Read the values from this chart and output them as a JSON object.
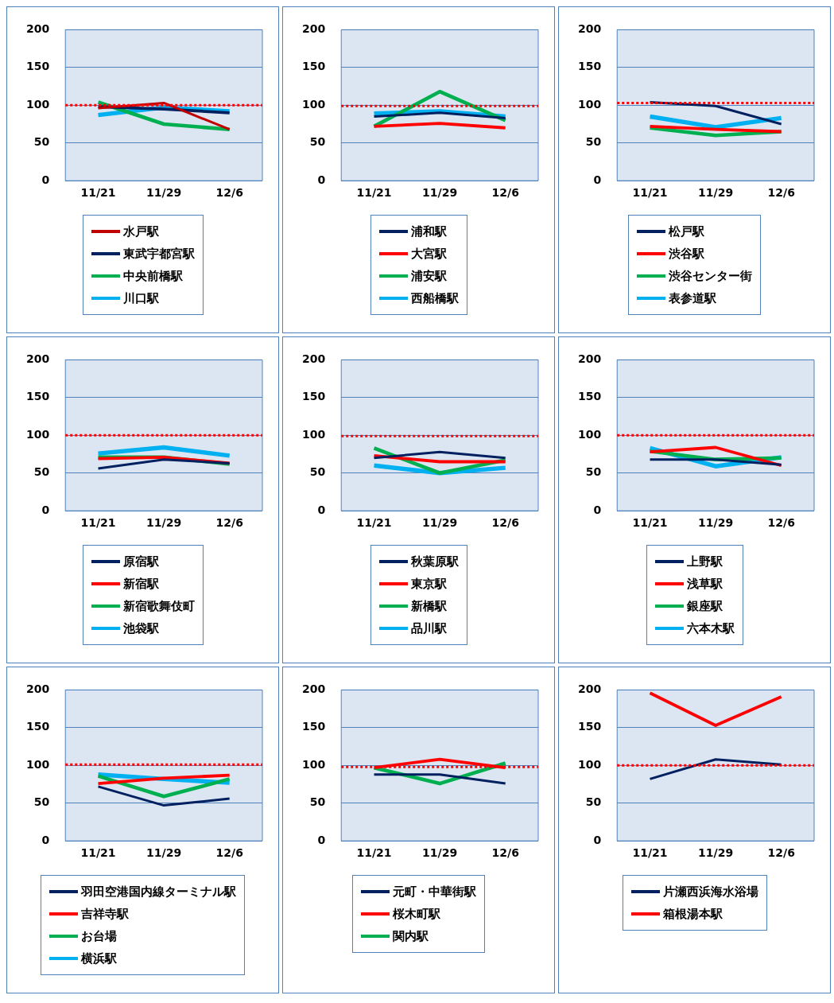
{
  "chart_data": [
    {
      "type": "line",
      "categories": [
        "11/21",
        "11/29",
        "12/6"
      ],
      "ylim": [
        0,
        200
      ],
      "yticks": [
        0,
        50,
        100,
        150,
        200
      ],
      "grid": "y",
      "legend": "bottom",
      "marker": "none",
      "line_style": "solid",
      "ref_lines": [
        {
          "axis": "y",
          "value": 100,
          "color": "#ff0000",
          "line_style": "dotted"
        }
      ],
      "series": [
        {
          "name": "水戸駅",
          "color": "#c00000",
          "values": [
            96,
            103,
            68
          ]
        },
        {
          "name": "東武宇都宮駅",
          "color": "#002060",
          "values": [
            98,
            95,
            90
          ]
        },
        {
          "name": "中央前橋駅",
          "color": "#00b050",
          "values": [
            104,
            75,
            68
          ]
        },
        {
          "name": "川口駅",
          "color": "#00b0f0",
          "values": [
            87,
            97,
            92
          ]
        }
      ]
    },
    {
      "type": "line",
      "categories": [
        "11/21",
        "11/29",
        "12/6"
      ],
      "ylim": [
        0,
        200
      ],
      "yticks": [
        0,
        50,
        100,
        150,
        200
      ],
      "grid": "y",
      "legend": "bottom",
      "marker": "none",
      "line_style": "solid",
      "ref_lines": [
        {
          "axis": "y",
          "value": 99,
          "color": "#ff0000",
          "line_style": "dotted"
        }
      ],
      "series": [
        {
          "name": "浦和駅",
          "color": "#002060",
          "values": [
            85,
            90,
            83
          ]
        },
        {
          "name": "大宮駅",
          "color": "#ff0000",
          "values": [
            72,
            76,
            70
          ]
        },
        {
          "name": "浦安駅",
          "color": "#00b050",
          "values": [
            72,
            118,
            80
          ]
        },
        {
          "name": "西船橋駅",
          "color": "#00b0f0",
          "values": [
            89,
            92,
            85
          ]
        }
      ]
    },
    {
      "type": "line",
      "categories": [
        "11/21",
        "11/29",
        "12/6"
      ],
      "ylim": [
        0,
        200
      ],
      "yticks": [
        0,
        50,
        100,
        150,
        200
      ],
      "grid": "y",
      "legend": "bottom",
      "marker": "none",
      "line_style": "solid",
      "ref_lines": [
        {
          "axis": "y",
          "value": 103,
          "color": "#ff0000",
          "line_style": "dotted"
        }
      ],
      "series": [
        {
          "name": "松戸駅",
          "color": "#002060",
          "values": [
            104,
            99,
            75
          ]
        },
        {
          "name": "渋谷駅",
          "color": "#ff0000",
          "values": [
            72,
            68,
            65
          ]
        },
        {
          "name": "渋谷センター街",
          "color": "#00b050",
          "values": [
            70,
            60,
            65
          ]
        },
        {
          "name": "表参道駅",
          "color": "#00b0f0",
          "values": [
            85,
            71,
            83
          ]
        }
      ]
    },
    {
      "type": "line",
      "categories": [
        "11/21",
        "11/29",
        "12/6"
      ],
      "ylim": [
        0,
        200
      ],
      "yticks": [
        0,
        50,
        100,
        150,
        200
      ],
      "grid": "y",
      "legend": "bottom",
      "marker": "none",
      "line_style": "solid",
      "ref_lines": [
        {
          "axis": "y",
          "value": 100,
          "color": "#ff0000",
          "line_style": "dotted"
        }
      ],
      "series": [
        {
          "name": "原宿駅",
          "color": "#002060",
          "values": [
            56,
            68,
            63
          ]
        },
        {
          "name": "新宿駅",
          "color": "#ff0000",
          "values": [
            69,
            71,
            63
          ]
        },
        {
          "name": "新宿歌舞伎町",
          "color": "#00b050",
          "values": [
            71,
            71,
            62
          ]
        },
        {
          "name": "池袋駅",
          "color": "#00b0f0",
          "values": [
            76,
            84,
            73
          ]
        }
      ]
    },
    {
      "type": "line",
      "categories": [
        "11/21",
        "11/29",
        "12/6"
      ],
      "ylim": [
        0,
        200
      ],
      "yticks": [
        0,
        50,
        100,
        150,
        200
      ],
      "grid": "y",
      "legend": "bottom",
      "marker": "none",
      "line_style": "solid",
      "ref_lines": [
        {
          "axis": "y",
          "value": 99,
          "color": "#ff0000",
          "line_style": "dotted"
        }
      ],
      "series": [
        {
          "name": "秋葉原駅",
          "color": "#002060",
          "values": [
            70,
            78,
            70
          ]
        },
        {
          "name": "東京駅",
          "color": "#ff0000",
          "values": [
            73,
            65,
            65
          ]
        },
        {
          "name": "新橋駅",
          "color": "#00b050",
          "values": [
            83,
            50,
            67
          ]
        },
        {
          "name": "品川駅",
          "color": "#00b0f0",
          "values": [
            60,
            50,
            57
          ]
        }
      ]
    },
    {
      "type": "line",
      "categories": [
        "11/21",
        "11/29",
        "12/6"
      ],
      "ylim": [
        0,
        200
      ],
      "yticks": [
        0,
        50,
        100,
        150,
        200
      ],
      "grid": "y",
      "legend": "bottom",
      "marker": "none",
      "line_style": "solid",
      "ref_lines": [
        {
          "axis": "y",
          "value": 100,
          "color": "#ff0000",
          "line_style": "dotted"
        }
      ],
      "series": [
        {
          "name": "上野駅",
          "color": "#002060",
          "values": [
            68,
            68,
            61
          ]
        },
        {
          "name": "浅草駅",
          "color": "#ff0000",
          "values": [
            78,
            84,
            60
          ]
        },
        {
          "name": "銀座駅",
          "color": "#00b050",
          "values": [
            79,
            68,
            70
          ]
        },
        {
          "name": "六本木駅",
          "color": "#00b0f0",
          "values": [
            83,
            59,
            71
          ]
        }
      ]
    },
    {
      "type": "line",
      "categories": [
        "11/21",
        "11/29",
        "12/6"
      ],
      "ylim": [
        0,
        200
      ],
      "yticks": [
        0,
        50,
        100,
        150,
        200
      ],
      "grid": "y",
      "legend": "bottom",
      "marker": "none",
      "line_style": "solid",
      "ref_lines": [
        {
          "axis": "y",
          "value": 101,
          "color": "#ff0000",
          "line_style": "dotted"
        }
      ],
      "series": [
        {
          "name": "羽田空港国内線ターミナル駅",
          "color": "#002060",
          "values": [
            72,
            47,
            56
          ]
        },
        {
          "name": "吉祥寺駅",
          "color": "#ff0000",
          "values": [
            76,
            83,
            87
          ]
        },
        {
          "name": "お台場",
          "color": "#00b050",
          "values": [
            86,
            59,
            82
          ]
        },
        {
          "name": "横浜駅",
          "color": "#00b0f0",
          "values": [
            88,
            82,
            77
          ]
        }
      ]
    },
    {
      "type": "line",
      "categories": [
        "11/21",
        "11/29",
        "12/6"
      ],
      "ylim": [
        0,
        200
      ],
      "yticks": [
        0,
        50,
        100,
        150,
        200
      ],
      "grid": "y",
      "legend": "bottom",
      "marker": "none",
      "line_style": "solid",
      "ref_lines": [
        {
          "axis": "y",
          "value": 98,
          "color": "#ff0000",
          "line_style": "dotted"
        }
      ],
      "series": [
        {
          "name": "元町・中華街駅",
          "color": "#002060",
          "values": [
            88,
            88,
            76
          ]
        },
        {
          "name": "桜木町駅",
          "color": "#ff0000",
          "values": [
            97,
            108,
            97
          ]
        },
        {
          "name": "関内駅",
          "color": "#00b050",
          "values": [
            97,
            76,
            103
          ]
        }
      ]
    },
    {
      "type": "line",
      "categories": [
        "11/21",
        "11/29",
        "12/6"
      ],
      "ylim": [
        0,
        200
      ],
      "yticks": [
        0,
        50,
        100,
        150,
        200
      ],
      "grid": "y",
      "legend": "bottom",
      "marker": "none",
      "line_style": "solid",
      "ref_lines": [
        {
          "axis": "y",
          "value": 100,
          "color": "#ff0000",
          "line_style": "dotted"
        }
      ],
      "series": [
        {
          "name": "片瀬西浜海水浴場",
          "color": "#002060",
          "values": [
            82,
            108,
            101
          ]
        },
        {
          "name": "箱根湯本駅",
          "color": "#ff0000",
          "values": [
            196,
            153,
            191
          ]
        }
      ]
    }
  ]
}
